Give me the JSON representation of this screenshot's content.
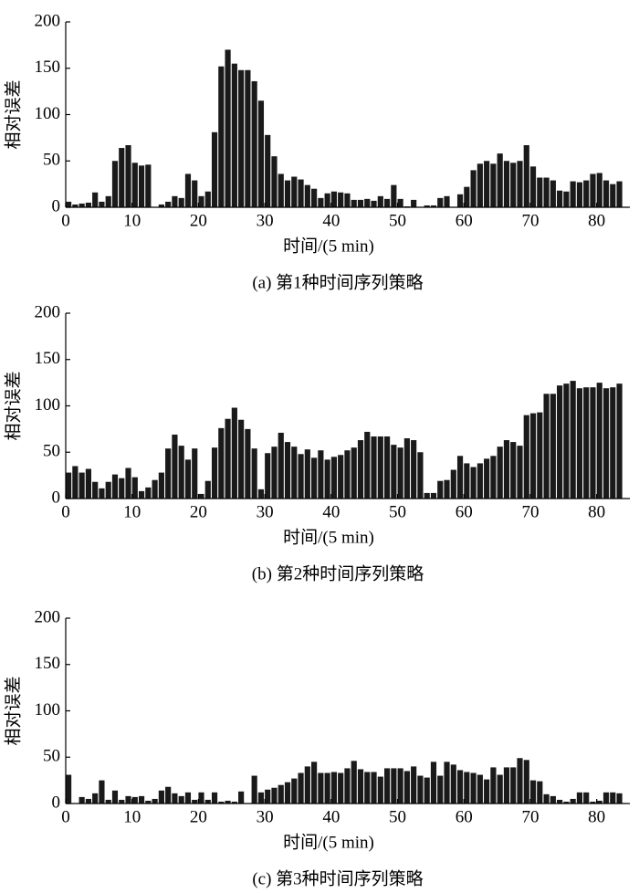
{
  "chart_data": [
    {
      "type": "bar",
      "title": "(a) 第1种时间序列策略",
      "xlabel": "时间/(5 min)",
      "ylabel": "相对误差",
      "color": "#1a1a1a",
      "x": [
        0,
        1,
        2,
        3,
        4,
        5,
        6,
        7,
        8,
        9,
        10,
        11,
        12,
        13,
        14,
        15,
        16,
        17,
        18,
        19,
        20,
        21,
        22,
        23,
        24,
        25,
        26,
        27,
        28,
        29,
        30,
        31,
        32,
        33,
        34,
        35,
        36,
        37,
        38,
        39,
        40,
        41,
        42,
        43,
        44,
        45,
        46,
        47,
        48,
        49,
        50,
        51,
        52,
        53,
        54,
        55,
        56,
        57,
        58,
        59,
        60,
        61,
        62,
        63,
        64,
        65,
        66,
        67,
        68,
        69,
        70,
        71,
        72,
        73,
        74,
        75,
        76,
        77,
        78,
        79,
        80,
        81,
        82,
        83
      ],
      "values": [
        6,
        3,
        4,
        5,
        16,
        6,
        12,
        50,
        64,
        67,
        48,
        45,
        46,
        0,
        3,
        6,
        12,
        10,
        36,
        29,
        12,
        17,
        81,
        152,
        170,
        155,
        148,
        148,
        136,
        115,
        78,
        55,
        36,
        29,
        33,
        30,
        24,
        20,
        10,
        15,
        17,
        16,
        15,
        8,
        8,
        9,
        7,
        12,
        9,
        24,
        9,
        1,
        8,
        0,
        2,
        2,
        10,
        12,
        0,
        14,
        22,
        40,
        47,
        50,
        47,
        58,
        50,
        48,
        50,
        67,
        44,
        32,
        32,
        29,
        18,
        17,
        28,
        27,
        29,
        36,
        37,
        29,
        25,
        28
      ],
      "xlim": [
        0,
        85
      ],
      "ylim": [
        0,
        200
      ],
      "xticks": [
        0,
        10,
        20,
        30,
        40,
        50,
        60,
        70,
        80
      ],
      "yticks": [
        0,
        50,
        100,
        150,
        200
      ]
    },
    {
      "type": "bar",
      "title": "(b) 第2种时间序列策略",
      "xlabel": "时间/(5 min)",
      "ylabel": "相对误差",
      "color": "#1a1a1a",
      "x": [
        0,
        1,
        2,
        3,
        4,
        5,
        6,
        7,
        8,
        9,
        10,
        11,
        12,
        13,
        14,
        15,
        16,
        17,
        18,
        19,
        20,
        21,
        22,
        23,
        24,
        25,
        26,
        27,
        28,
        29,
        30,
        31,
        32,
        33,
        34,
        35,
        36,
        37,
        38,
        39,
        40,
        41,
        42,
        43,
        44,
        45,
        46,
        47,
        48,
        49,
        50,
        51,
        52,
        53,
        54,
        55,
        56,
        57,
        58,
        59,
        60,
        61,
        62,
        63,
        64,
        65,
        66,
        67,
        68,
        69,
        70,
        71,
        72,
        73,
        74,
        75,
        76,
        77,
        78,
        79,
        80,
        81,
        82,
        83
      ],
      "values": [
        28,
        35,
        28,
        32,
        18,
        11,
        18,
        26,
        22,
        33,
        23,
        8,
        12,
        20,
        28,
        54,
        69,
        57,
        42,
        54,
        5,
        19,
        55,
        76,
        86,
        98,
        85,
        75,
        54,
        10,
        49,
        56,
        71,
        61,
        56,
        48,
        53,
        44,
        52,
        42,
        45,
        47,
        52,
        55,
        63,
        72,
        67,
        67,
        67,
        58,
        55,
        65,
        63,
        50,
        6,
        6,
        19,
        20,
        31,
        46,
        38,
        34,
        38,
        43,
        46,
        56,
        63,
        61,
        57,
        90,
        92,
        93,
        113,
        113,
        122,
        124,
        127,
        119,
        120,
        120,
        125,
        119,
        120,
        124
      ],
      "xlim": [
        0,
        85
      ],
      "ylim": [
        0,
        200
      ],
      "xticks": [
        0,
        10,
        20,
        30,
        40,
        50,
        60,
        70,
        80
      ],
      "yticks": [
        0,
        50,
        100,
        150,
        200
      ]
    },
    {
      "type": "bar",
      "title": "(c) 第3种时间序列策略",
      "xlabel": "时间/(5 min)",
      "ylabel": "相对误差",
      "color": "#1a1a1a",
      "x": [
        0,
        1,
        2,
        3,
        4,
        5,
        6,
        7,
        8,
        9,
        10,
        11,
        12,
        13,
        14,
        15,
        16,
        17,
        18,
        19,
        20,
        21,
        22,
        23,
        24,
        25,
        26,
        27,
        28,
        29,
        30,
        31,
        32,
        33,
        34,
        35,
        36,
        37,
        38,
        39,
        40,
        41,
        42,
        43,
        44,
        45,
        46,
        47,
        48,
        49,
        50,
        51,
        52,
        53,
        54,
        55,
        56,
        57,
        58,
        59,
        60,
        61,
        62,
        63,
        64,
        65,
        66,
        67,
        68,
        69,
        70,
        71,
        72,
        73,
        74,
        75,
        76,
        77,
        78,
        79,
        80,
        81,
        82,
        83
      ],
      "values": [
        31,
        0,
        7,
        5,
        11,
        25,
        4,
        14,
        4,
        8,
        7,
        8,
        3,
        5,
        14,
        18,
        11,
        8,
        12,
        4,
        12,
        4,
        12,
        2,
        3,
        2,
        13,
        0,
        30,
        12,
        15,
        17,
        20,
        23,
        27,
        33,
        40,
        45,
        33,
        33,
        34,
        33,
        38,
        46,
        37,
        34,
        34,
        29,
        38,
        38,
        38,
        35,
        40,
        30,
        28,
        45,
        30,
        45,
        42,
        36,
        34,
        33,
        31,
        26,
        39,
        31,
        39,
        39,
        49,
        47,
        25,
        24,
        10,
        8,
        4,
        2,
        5,
        12,
        12,
        2,
        3,
        12,
        12,
        11
      ],
      "xlim": [
        0,
        85
      ],
      "ylim": [
        0,
        200
      ],
      "xticks": [
        0,
        10,
        20,
        30,
        40,
        50,
        60,
        70,
        80
      ],
      "yticks": [
        0,
        50,
        100,
        150,
        200
      ]
    }
  ]
}
